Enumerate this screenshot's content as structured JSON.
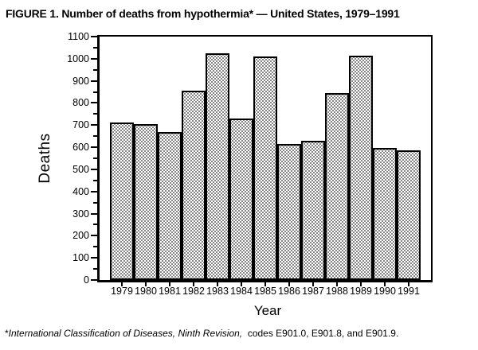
{
  "chart_data": {
    "type": "bar",
    "title": "FIGURE 1. Number of deaths from hypothermia* — United States, 1979–1991",
    "xlabel": "Year",
    "ylabel": "Deaths",
    "categories": [
      "1979",
      "1980",
      "1981",
      "1982",
      "1983",
      "1984",
      "1985",
      "1986",
      "1987",
      "1988",
      "1989",
      "1990",
      "1991"
    ],
    "values": [
      710,
      705,
      670,
      855,
      1025,
      730,
      1010,
      615,
      630,
      845,
      1015,
      595,
      585
    ],
    "ylim": [
      0,
      1100
    ],
    "y_major_step": 100,
    "y_minor_step": 50,
    "grid": false,
    "legend": "none",
    "bar_fill": "black-dot-stipple-on-white",
    "colors": {
      "foreground": "#000000",
      "background": "#ffffff"
    }
  },
  "footnote": {
    "marker": "*",
    "italic_text": "International Classification of Diseases, Ninth Revision,",
    "regular_text": "  codes E901.0, E901.8, and E901.9."
  }
}
